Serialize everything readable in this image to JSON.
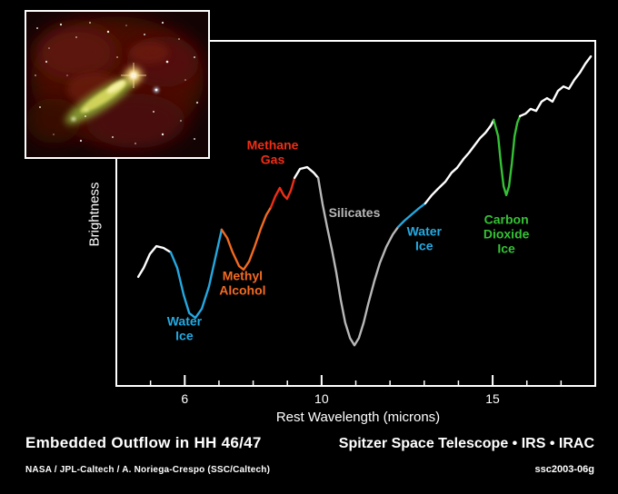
{
  "meta": {
    "description": "Spitzer Space Telescope infrared spectrum of the embedded outflow HH 46/47 with inset IRAC image",
    "background_color": "#000000",
    "axis_color": "#ffffff"
  },
  "inset": {
    "alt": "Infrared image of the HH 46/47 nebula and outflow",
    "border_color": "#ffffff"
  },
  "chart_data": {
    "type": "line",
    "title": "",
    "xlabel": "Rest Wavelength (microns)",
    "ylabel": "Brightness",
    "xlim": [
      4.0,
      18.0
    ],
    "ylim": [
      0,
      100
    ],
    "x_ticks_major": [
      6,
      10,
      15
    ],
    "x_ticks_minor": [
      5,
      6,
      7,
      8,
      9,
      10,
      11,
      12,
      13,
      14,
      15,
      16,
      17
    ],
    "y_tick_labels": "none (arbitrary brightness units)",
    "grid": false,
    "legend": "inline colored annotations",
    "segments": [
      {
        "name": "continuum-start",
        "feature": null,
        "color": "#ffffff",
        "points": [
          [
            4.64,
            31.6
          ],
          [
            4.8,
            34.2
          ],
          [
            4.98,
            38.2
          ],
          [
            5.17,
            40.5
          ],
          [
            5.38,
            40.0
          ],
          [
            5.59,
            38.7
          ]
        ]
      },
      {
        "name": "water-ice-6um",
        "feature": "Water Ice",
        "color": "#25a8e0",
        "points": [
          [
            5.59,
            38.7
          ],
          [
            5.78,
            34.2
          ],
          [
            5.97,
            26.3
          ],
          [
            6.13,
            21.1
          ],
          [
            6.31,
            19.7
          ],
          [
            6.5,
            22.4
          ],
          [
            6.71,
            28.9
          ],
          [
            6.92,
            38.2
          ],
          [
            7.08,
            45.3
          ]
        ]
      },
      {
        "name": "methyl-alcohol",
        "feature": "Methyl Alcohol",
        "color": "#f26a21",
        "points": [
          [
            7.08,
            45.3
          ],
          [
            7.24,
            42.9
          ],
          [
            7.4,
            38.7
          ],
          [
            7.59,
            34.7
          ],
          [
            7.72,
            33.7
          ],
          [
            7.88,
            36.1
          ],
          [
            8.04,
            40.3
          ],
          [
            8.22,
            45.5
          ],
          [
            8.38,
            49.5
          ],
          [
            8.52,
            51.8
          ]
        ]
      },
      {
        "name": "methane-gas",
        "feature": "Methane Gas",
        "color": "#ee2e15",
        "points": [
          [
            8.52,
            51.8
          ],
          [
            8.65,
            55.0
          ],
          [
            8.78,
            57.4
          ],
          [
            8.89,
            55.3
          ],
          [
            8.99,
            54.2
          ],
          [
            9.1,
            56.6
          ],
          [
            9.21,
            60.3
          ]
        ]
      },
      {
        "name": "continuum-peak",
        "feature": null,
        "color": "#ffffff",
        "points": [
          [
            9.21,
            60.3
          ],
          [
            9.37,
            62.9
          ],
          [
            9.58,
            63.4
          ],
          [
            9.77,
            61.8
          ],
          [
            9.9,
            60.3
          ]
        ]
      },
      {
        "name": "silicates",
        "feature": "Silicates",
        "color": "#b8b8b8",
        "points": [
          [
            9.9,
            60.3
          ],
          [
            10.03,
            52.6
          ],
          [
            10.16,
            46.1
          ],
          [
            10.3,
            39.5
          ],
          [
            10.43,
            32.9
          ],
          [
            10.56,
            25.0
          ],
          [
            10.69,
            18.4
          ],
          [
            10.83,
            13.9
          ],
          [
            10.96,
            11.8
          ],
          [
            11.09,
            13.9
          ],
          [
            11.23,
            18.4
          ],
          [
            11.36,
            23.7
          ],
          [
            11.54,
            30.3
          ],
          [
            11.7,
            35.5
          ],
          [
            11.89,
            40.3
          ],
          [
            12.08,
            43.9
          ],
          [
            12.24,
            46.1
          ]
        ]
      },
      {
        "name": "water-ice-12um",
        "feature": "Water Ice",
        "color": "#25a8e0",
        "points": [
          [
            12.24,
            46.1
          ],
          [
            12.42,
            47.9
          ],
          [
            12.61,
            49.5
          ],
          [
            12.82,
            51.3
          ],
          [
            13.03,
            52.9
          ]
        ]
      },
      {
        "name": "continuum-rise",
        "feature": null,
        "color": "#ffffff",
        "points": [
          [
            13.03,
            52.9
          ],
          [
            13.22,
            55.3
          ],
          [
            13.4,
            57.1
          ],
          [
            13.62,
            59.2
          ],
          [
            13.8,
            61.8
          ],
          [
            13.96,
            63.2
          ],
          [
            14.15,
            65.8
          ],
          [
            14.31,
            67.6
          ],
          [
            14.47,
            69.7
          ],
          [
            14.63,
            71.8
          ],
          [
            14.79,
            73.4
          ],
          [
            14.95,
            75.5
          ],
          [
            15.03,
            77.1
          ]
        ]
      },
      {
        "name": "carbon-dioxide-ice",
        "feature": "Carbon Dioxide Ice",
        "color": "#35c135",
        "points": [
          [
            15.03,
            77.1
          ],
          [
            15.16,
            72.4
          ],
          [
            15.24,
            64.5
          ],
          [
            15.32,
            57.9
          ],
          [
            15.4,
            55.3
          ],
          [
            15.48,
            57.9
          ],
          [
            15.56,
            64.5
          ],
          [
            15.64,
            72.4
          ],
          [
            15.72,
            76.3
          ],
          [
            15.8,
            78.2
          ]
        ]
      },
      {
        "name": "continuum-end",
        "feature": null,
        "color": "#ffffff",
        "points": [
          [
            15.8,
            78.2
          ],
          [
            15.96,
            78.9
          ],
          [
            16.11,
            80.3
          ],
          [
            16.27,
            79.7
          ],
          [
            16.43,
            82.4
          ],
          [
            16.59,
            83.4
          ],
          [
            16.75,
            82.4
          ],
          [
            16.91,
            85.5
          ],
          [
            17.07,
            86.8
          ],
          [
            17.23,
            86.1
          ],
          [
            17.39,
            88.7
          ],
          [
            17.55,
            90.8
          ],
          [
            17.71,
            93.4
          ],
          [
            17.87,
            95.5
          ]
        ]
      }
    ],
    "annotations": [
      {
        "name": "water-ice-1",
        "lines": [
          "Water",
          "Ice"
        ],
        "color": "#25a8e0",
        "x": 5.99,
        "y": 16.6
      },
      {
        "name": "methyl-alcohol",
        "lines": [
          "Methyl",
          "Alcohol"
        ],
        "color": "#f26a21",
        "x": 7.69,
        "y": 29.7
      },
      {
        "name": "methane-gas",
        "lines": [
          "Methane",
          "Gas"
        ],
        "color": "#ee2e15",
        "x": 8.57,
        "y": 67.6
      },
      {
        "name": "silicates",
        "lines": [
          "Silicates"
        ],
        "color": "#b8b8b8",
        "x": 10.96,
        "y": 50.0
      },
      {
        "name": "water-ice-2",
        "lines": [
          "Water",
          "Ice"
        ],
        "color": "#25a8e0",
        "x": 13.0,
        "y": 42.6
      },
      {
        "name": "carbon-dioxide-ice",
        "lines": [
          "Carbon",
          "Dioxide",
          "Ice"
        ],
        "color": "#35c135",
        "x": 15.4,
        "y": 43.9
      }
    ]
  },
  "footer": {
    "title": "Embedded Outflow in HH 46/47",
    "telescope": "Spitzer Space Telescope • IRS • IRAC",
    "credit": "NASA / JPL-Caltech / A. Noriega-Crespo (SSC/Caltech)",
    "image_id": "ssc2003-06g"
  }
}
